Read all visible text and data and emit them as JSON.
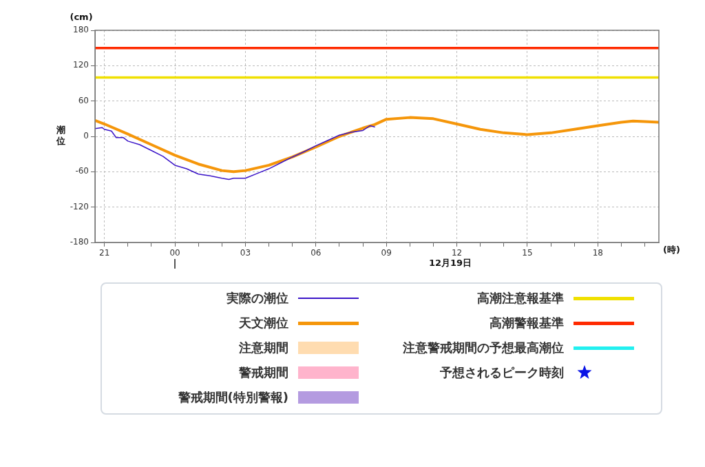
{
  "chart_data": {
    "type": "line",
    "ylabel": "潮位",
    "xlabel": "(時)",
    "annotations": [
      "(cm)",
      "12月19日"
    ],
    "xlim": [
      "--12-18T20:36",
      "--12-19T20:36"
    ],
    "ylim": [
      -180,
      180
    ],
    "yticks": [
      -180,
      -120,
      -60,
      0,
      60,
      120,
      180
    ],
    "xticks": [
      {
        "value": "--12-18T21:00",
        "label": "21"
      },
      {
        "value": "--12-18T22:00",
        "label": null
      },
      {
        "value": "--12-18T23:00",
        "label": null
      },
      {
        "value": "--12-19T00:00",
        "label": "00"
      },
      {
        "value": "--12-19T01:00",
        "label": null
      },
      {
        "value": "--12-19T02:00",
        "label": null
      },
      {
        "value": "--12-19T03:00",
        "label": "03"
      },
      {
        "value": "--12-19T04:00",
        "label": null
      },
      {
        "value": "--12-19T05:00",
        "label": null
      },
      {
        "value": "--12-19T06:00",
        "label": "06"
      },
      {
        "value": "--12-19T07:00",
        "label": null
      },
      {
        "value": "--12-19T08:00",
        "label": null
      },
      {
        "value": "--12-19T09:00",
        "label": "09"
      },
      {
        "value": "--12-19T10:00",
        "label": null
      },
      {
        "value": "--12-19T11:00",
        "label": null
      },
      {
        "value": "--12-19T12:00",
        "label": "12"
      },
      {
        "value": "--12-19T13:00",
        "label": null
      },
      {
        "value": "--12-19T14:00",
        "label": null
      },
      {
        "value": "--12-19T15:00",
        "label": "15"
      },
      {
        "value": "--12-19T16:00",
        "label": null
      },
      {
        "value": "--12-19T17:00",
        "label": null
      },
      {
        "value": "--12-19T18:00",
        "label": "18"
      },
      {
        "value": "--12-19T19:00",
        "label": null
      },
      {
        "value": "--12-19T20:00",
        "label": null
      }
    ],
    "grid": true,
    "legend": "bottom",
    "line_style": "solid",
    "marker": "none",
    "series": [
      {
        "name": "実際の潮位",
        "color": "#3a14c8",
        "x": [
          "--12-18T20:36",
          "--12-18T20:54",
          "--12-18T21:00",
          "--12-18T21:18",
          "--12-18T21:30",
          "--12-18T21:48",
          "--12-18T22:00",
          "--12-18T22:30",
          "--12-18T23:00",
          "--12-18T23:30",
          "--12-19T00:00",
          "--12-19T00:30",
          "--12-19T01:00",
          "--12-19T01:30",
          "--12-19T02:00",
          "--12-19T02:18",
          "--12-19T02:30",
          "--12-19T03:00",
          "--12-19T03:30",
          "--12-19T04:00",
          "--12-19T04:30",
          "--12-19T05:00",
          "--12-19T05:30",
          "--12-19T06:00",
          "--12-19T06:30",
          "--12-19T07:00",
          "--12-19T07:30",
          "--12-19T08:00",
          "--12-19T08:18",
          "--12-19T08:30"
        ],
        "values": [
          13,
          15,
          12,
          9,
          -2,
          -2,
          -8,
          -14,
          -24,
          -34,
          -49,
          -55,
          -64,
          -67,
          -71,
          -73,
          -71,
          -71,
          -63,
          -55,
          -45,
          -35,
          -26,
          -16,
          -7,
          2,
          7,
          10,
          18,
          16
        ]
      },
      {
        "name": "天文潮位",
        "color": "#f5960a",
        "x": [
          "--12-18T20:36",
          "--12-18T21:00",
          "--12-18T22:00",
          "--12-18T23:00",
          "--12-19T00:00",
          "--12-19T01:00",
          "--12-19T02:00",
          "--12-19T02:30",
          "--12-19T03:00",
          "--12-19T04:00",
          "--12-19T05:00",
          "--12-19T06:00",
          "--12-19T07:00",
          "--12-19T08:00",
          "--12-19T08:30",
          "--12-19T09:00",
          "--12-19T10:00",
          "--12-19T11:00",
          "--12-19T12:00",
          "--12-19T13:00",
          "--12-19T14:00",
          "--12-19T15:00",
          "--12-19T16:00",
          "--12-19T17:00",
          "--12-19T18:00",
          "--12-19T19:00",
          "--12-19T19:30",
          "--12-19T20:00",
          "--12-19T20:36"
        ],
        "values": [
          27,
          21,
          4,
          -14,
          -32,
          -47,
          -58,
          -60,
          -58,
          -49,
          -35,
          -18,
          0,
          14,
          20,
          29,
          32,
          30,
          21,
          12,
          6,
          3,
          6,
          12,
          18,
          24,
          26,
          25,
          24
        ]
      },
      {
        "name": "注意期間",
        "type": "area",
        "color": "#ffdcb0"
      },
      {
        "name": "警戒期間",
        "type": "area",
        "color": "#ffb4cc"
      },
      {
        "name": "警戒期間(特別警報)",
        "type": "area",
        "color": "#b49be0"
      },
      {
        "name": "注意警戒期間の予想最高潮位",
        "color": "#22f0f0"
      },
      {
        "name": "予想されるピーク時刻",
        "type": "scatter",
        "marker": "star",
        "color": "#0a14e6"
      }
    ],
    "ref_lines": [
      {
        "axis": "y",
        "value": 100,
        "label": "高潮注意報基準",
        "color": "#f0e000"
      },
      {
        "axis": "y",
        "value": 150,
        "label": "高潮警報基準",
        "color": "#ff2a00"
      }
    ]
  }
}
